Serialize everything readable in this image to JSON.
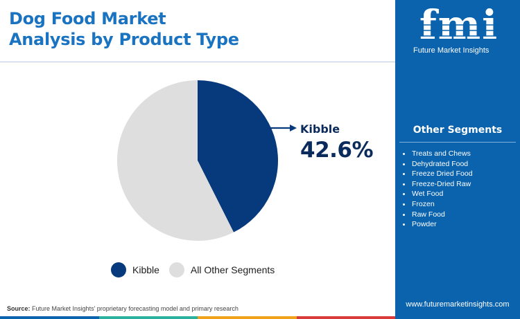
{
  "header": {
    "title_line1": "Dog Food Market",
    "title_line2": "Analysis by Product Type"
  },
  "chart_data": {
    "type": "pie",
    "title": "Dog Food Market Analysis by Product Type",
    "slices": [
      {
        "name": "Kibble",
        "value": 42.6,
        "color": "#073a7d"
      },
      {
        "name": "All Other Segments",
        "value": 57.4,
        "color": "#dedede"
      }
    ],
    "callout": {
      "label": "Kibble",
      "value": "42.6%"
    },
    "legend": [
      "Kibble",
      "All Other Segments"
    ],
    "legend_placement": "bottom"
  },
  "sidebar": {
    "logo_text": "fmi",
    "logo_caption": "Future Market Insights",
    "heading": "Other Segments",
    "items": [
      "Treats and Chews",
      "Dehydrated Food",
      "Freeze Dried Food",
      "Freeze-Dried Raw",
      "Wet Food",
      "Frozen",
      "Raw Food",
      "Powder"
    ],
    "website": "www.futuremarketinsights.com"
  },
  "footer": {
    "source_label": "Source:",
    "source_text": "Future Market Insights' proprietary forecasting model and primary research",
    "bar_colors": [
      "#0b63ae",
      "#2bb0a0",
      "#f0a21a",
      "#d93a3a"
    ]
  },
  "colors": {
    "title": "#1a73c0",
    "accent_dark": "#073a7d",
    "panel": "#0b63ae"
  }
}
